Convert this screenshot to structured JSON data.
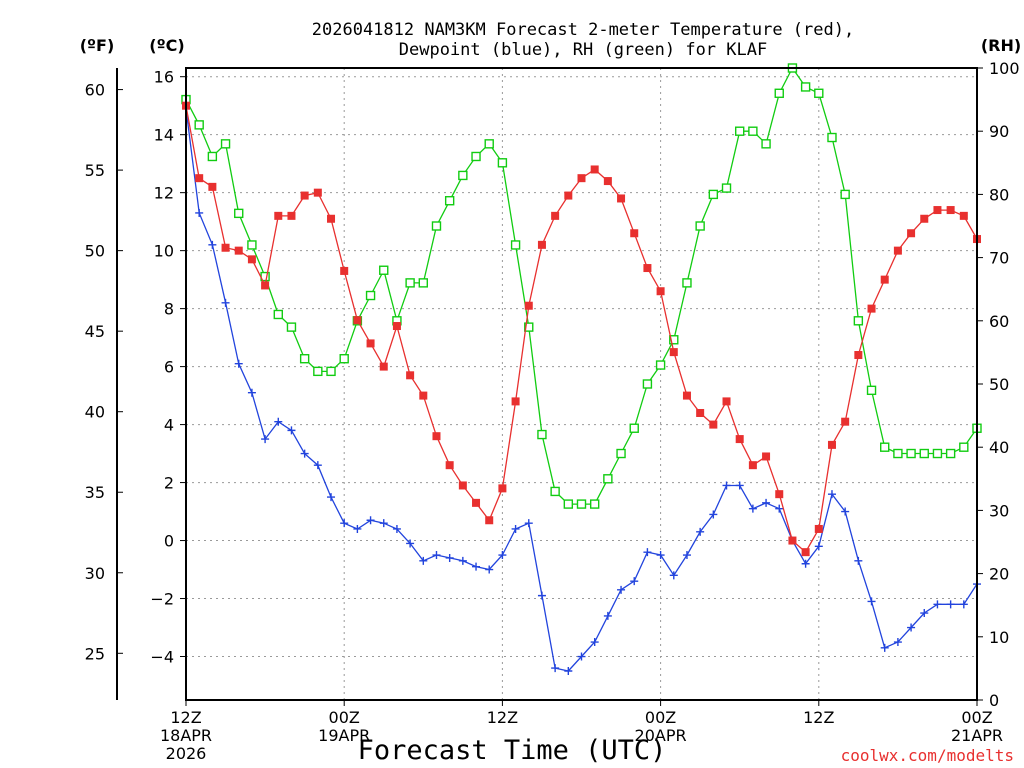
{
  "chart_data": {
    "type": "line",
    "title_line1": "2026041812 NAM3KM Forecast 2-meter Temperature (red),",
    "title_line2": "Dewpoint (blue), RH (green) for KLAF",
    "xlabel": "Forecast Time (UTC)",
    "credit": "coolwx.com/modelts",
    "unit_labels": {
      "fahrenheit": "(ºF)",
      "celsius": "(ºC)",
      "rh": "(RH)"
    },
    "x_range_hours": [
      0,
      60
    ],
    "celsius_range": [
      -5.5,
      16.3
    ],
    "rh_range": [
      0,
      100
    ],
    "celsius_ticks": [
      "16",
      "14",
      "12",
      "10",
      "8",
      "6",
      "4",
      "2",
      "0",
      "−2",
      "−4"
    ],
    "celsius_tick_values": [
      16,
      14,
      12,
      10,
      8,
      6,
      4,
      2,
      0,
      -2,
      -4
    ],
    "fahrenheit_ticks": [
      "60",
      "55",
      "50",
      "45",
      "40",
      "35",
      "30",
      "25"
    ],
    "fahrenheit_tick_values": [
      60,
      55,
      50,
      45,
      40,
      35,
      30,
      25
    ],
    "rh_ticks": [
      "100",
      "90",
      "80",
      "70",
      "60",
      "50",
      "40",
      "30",
      "20",
      "10",
      "0"
    ],
    "rh_tick_values": [
      100,
      90,
      80,
      70,
      60,
      50,
      40,
      30,
      20,
      10,
      0
    ],
    "x_ticks": [
      {
        "hour": 0,
        "label": "12Z",
        "sub1": "18APR",
        "sub2": "2026"
      },
      {
        "hour": 12,
        "label": "00Z",
        "sub1": "19APR",
        "sub2": ""
      },
      {
        "hour": 24,
        "label": "12Z",
        "sub1": "",
        "sub2": ""
      },
      {
        "hour": 36,
        "label": "00Z",
        "sub1": "20APR",
        "sub2": ""
      },
      {
        "hour": 48,
        "label": "12Z",
        "sub1": "",
        "sub2": ""
      },
      {
        "hour": 60,
        "label": "00Z",
        "sub1": "21APR",
        "sub2": ""
      }
    ],
    "series": [
      {
        "name": "2-meter Temperature",
        "units": "C",
        "color": "#e8302f",
        "marker": "filled-square",
        "hours": [
          0,
          1,
          2,
          3,
          4,
          5,
          6,
          7,
          8,
          9,
          10,
          11,
          12,
          13,
          14,
          15,
          16,
          17,
          18,
          19,
          20,
          21,
          22,
          23,
          24,
          25,
          26,
          27,
          28,
          29,
          30,
          31,
          32,
          33,
          34,
          35,
          36,
          37,
          38,
          39,
          40,
          41,
          42,
          43,
          44,
          45,
          46,
          47,
          48,
          49,
          50,
          51,
          52,
          53,
          54,
          55,
          56,
          57,
          58,
          59,
          60
        ],
        "values": [
          15.0,
          12.5,
          12.2,
          10.1,
          10.0,
          9.7,
          8.8,
          11.2,
          11.2,
          11.9,
          12.0,
          11.1,
          9.3,
          7.6,
          6.8,
          6.0,
          7.4,
          5.7,
          5.0,
          3.6,
          2.6,
          1.9,
          1.3,
          0.7,
          1.8,
          4.8,
          8.1,
          10.2,
          11.2,
          11.9,
          12.5,
          12.8,
          12.4,
          11.8,
          10.6,
          9.4,
          8.6,
          6.5,
          5.0,
          4.4,
          4.0,
          4.8,
          3.5,
          2.6,
          2.9,
          1.6,
          0.0,
          -0.4,
          0.4,
          3.3,
          4.1,
          6.4,
          8.0,
          9.0,
          10.0,
          10.6,
          11.1,
          11.4,
          11.4,
          11.2,
          10.4
        ]
      },
      {
        "name": "2-meter Dewpoint",
        "units": "C",
        "color": "#2244dd",
        "marker": "plus",
        "hours": [
          0,
          1,
          2,
          3,
          4,
          5,
          6,
          7,
          8,
          9,
          10,
          11,
          12,
          13,
          14,
          15,
          16,
          17,
          18,
          19,
          20,
          21,
          22,
          23,
          24,
          25,
          26,
          27,
          28,
          29,
          30,
          31,
          32,
          33,
          34,
          35,
          36,
          37,
          38,
          39,
          40,
          41,
          42,
          43,
          44,
          45,
          46,
          47,
          48,
          49,
          50,
          51,
          52,
          53,
          54,
          55,
          56,
          57,
          58,
          59,
          60
        ],
        "values": [
          14.9,
          11.3,
          10.2,
          8.2,
          6.1,
          5.1,
          3.5,
          4.1,
          3.8,
          3.0,
          2.6,
          1.5,
          0.6,
          0.4,
          0.7,
          0.6,
          0.4,
          -0.1,
          -0.7,
          -0.5,
          -0.6,
          -0.7,
          -0.9,
          -1.0,
          -0.5,
          0.4,
          0.6,
          -1.9,
          -4.4,
          -4.5,
          -4.0,
          -3.5,
          -2.6,
          -1.7,
          -1.4,
          -0.4,
          -0.5,
          -1.2,
          -0.5,
          0.3,
          0.9,
          1.9,
          1.9,
          1.1,
          1.3,
          1.1,
          0.0,
          -0.8,
          -0.2,
          1.6,
          1.0,
          -0.7,
          -2.1,
          -3.7,
          -3.5,
          -3.0,
          -2.5,
          -2.2,
          -2.2,
          -2.2,
          -1.5
        ]
      },
      {
        "name": "Relative Humidity",
        "units": "%",
        "color": "#11cc11",
        "marker": "open-square",
        "hours": [
          0,
          1,
          2,
          3,
          4,
          5,
          6,
          7,
          8,
          9,
          10,
          11,
          12,
          13,
          14,
          15,
          16,
          17,
          18,
          19,
          20,
          21,
          22,
          23,
          24,
          25,
          26,
          27,
          28,
          29,
          30,
          31,
          32,
          33,
          34,
          35,
          36,
          37,
          38,
          39,
          40,
          41,
          42,
          43,
          44,
          45,
          46,
          47,
          48,
          49,
          50,
          51,
          52,
          53,
          54,
          55,
          56,
          57,
          58,
          59,
          60
        ],
        "values": [
          95,
          91,
          86,
          88,
          77,
          72,
          67,
          61,
          59,
          54,
          52,
          52,
          54,
          60,
          64,
          68,
          60,
          66,
          66,
          75,
          79,
          83,
          86,
          88,
          85,
          72,
          59,
          42,
          33,
          31,
          31,
          31,
          35,
          39,
          43,
          50,
          53,
          57,
          66,
          75,
          80,
          81,
          90,
          90,
          88,
          96,
          100,
          97,
          96,
          89,
          80,
          60,
          49,
          40,
          39,
          39,
          39,
          39,
          39,
          40,
          43
        ]
      }
    ]
  }
}
